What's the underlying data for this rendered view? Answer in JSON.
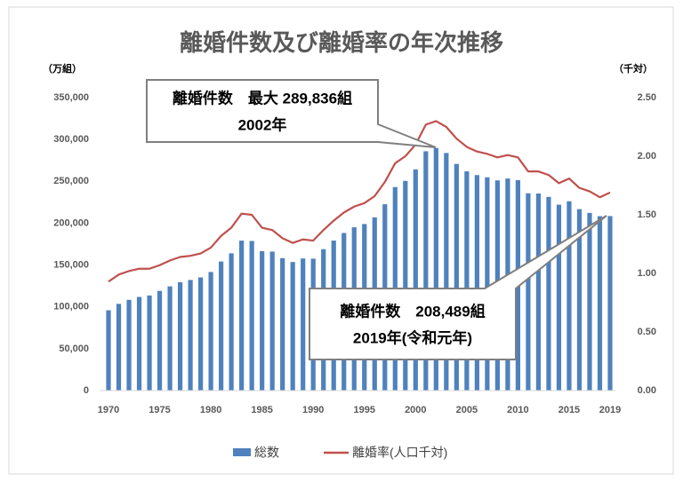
{
  "chart_data": {
    "type": "bar-line",
    "title": "離婚件数及び離婚率の年次推移",
    "y_label": "（万組）",
    "y2_label": "（千対）",
    "categories": [
      "1970",
      null,
      null,
      null,
      null,
      "1975",
      null,
      null,
      null,
      null,
      "1980",
      null,
      null,
      null,
      null,
      "1985",
      null,
      null,
      null,
      null,
      "1990",
      null,
      null,
      null,
      null,
      "1995",
      null,
      null,
      null,
      null,
      "2000",
      null,
      null,
      null,
      null,
      "2005",
      null,
      null,
      null,
      null,
      "2010",
      null,
      null,
      null,
      null,
      "2015",
      null,
      null,
      null,
      "2019"
    ],
    "series": [
      {
        "name": "総数",
        "type": "bar",
        "color": "#4f81bd",
        "values": [
          95937,
          103595,
          108382,
          111877,
          113622,
          119135,
          124512,
          129485,
          132146,
          135250,
          141689,
          154221,
          163980,
          179150,
          178746,
          166640,
          166054,
          158227,
          153600,
          157811,
          157608,
          168969,
          179191,
          188297,
          195106,
          199016,
          206955,
          222635,
          243183,
          250529,
          264246,
          285911,
          289836,
          283854,
          270804,
          261917,
          257475,
          254832,
          251136,
          253353,
          251378,
          235719,
          235406,
          231383,
          222107,
          226215,
          216798,
          212262,
          208333,
          208489
        ]
      },
      {
        "name": "離婚率(人口千対)",
        "type": "line",
        "axis": "y2",
        "color": "#c0504d",
        "values": [
          0.93,
          0.99,
          1.02,
          1.04,
          1.04,
          1.07,
          1.11,
          1.14,
          1.15,
          1.17,
          1.22,
          1.32,
          1.39,
          1.51,
          1.5,
          1.39,
          1.37,
          1.3,
          1.26,
          1.29,
          1.28,
          1.37,
          1.45,
          1.52,
          1.57,
          1.6,
          1.66,
          1.78,
          1.94,
          2.0,
          2.1,
          2.27,
          2.3,
          2.25,
          2.15,
          2.08,
          2.04,
          2.02,
          1.99,
          2.01,
          1.99,
          1.87,
          1.87,
          1.84,
          1.77,
          1.81,
          1.73,
          1.7,
          1.65,
          1.69
        ]
      }
    ],
    "ylim": [
      0,
      350000
    ],
    "yticks": [
      0,
      {
        "value": 50000,
        "label": "50,000"
      },
      {
        "value": 100000,
        "label": "100,000"
      },
      {
        "value": 150000,
        "label": "150,000"
      },
      {
        "value": 200000,
        "label": "200,000"
      },
      {
        "value": 250000,
        "label": "250,000"
      },
      {
        "value": 300000,
        "label": "300,000"
      },
      {
        "value": 350000,
        "label": "350,000"
      }
    ],
    "y2lim": [
      0,
      2.5
    ],
    "y2ticks": [
      {
        "value": 0,
        "label": "0.00"
      },
      {
        "value": 0.5,
        "label": "0.50"
      },
      {
        "value": 1,
        "label": "1.00"
      },
      {
        "value": 1.5,
        "label": "1.50"
      },
      {
        "value": 2,
        "label": "2.00"
      },
      {
        "value": 2.5,
        "label": "2.50"
      }
    ],
    "grid": false,
    "legend": "bottom",
    "annotations": [
      {
        "lines": [
          "離婚件数　最大 289,836組",
          "2002年"
        ]
      },
      {
        "lines": [
          "離婚件数　208,489組",
          "2019年(令和元年)"
        ]
      }
    ]
  }
}
